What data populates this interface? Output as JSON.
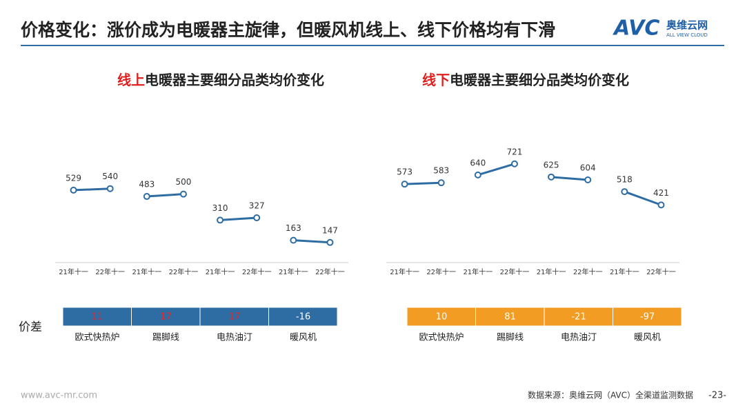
{
  "header": {
    "title": "价格变化：涨价成为电暖器主旋律，但暖风机线上、线下价格均有下滑",
    "logo_mark": "AVC",
    "logo_name": "奥维云网",
    "logo_sub": "ALL VIEW CLOUD"
  },
  "diff_label": "价差",
  "chart_data": [
    {
      "type": "line",
      "title_prefix": "线上",
      "title": "电暖器主要细分品类均价变化",
      "prefix_color": "#e02020",
      "categories": [
        "21年十一",
        "22年十一"
      ],
      "color": "#2e6ca4",
      "box_color": "#2e6ca4",
      "positive_color": "#e8262b",
      "negative_color": "#ffffff",
      "ylim": [
        0,
        1500
      ],
      "groups": [
        {
          "name": "欧式快热炉",
          "values": [
            529,
            540
          ],
          "diff": 11
        },
        {
          "name": "踢脚线",
          "values": [
            483,
            500
          ],
          "diff": 17
        },
        {
          "name": "电热油汀",
          "values": [
            310,
            327
          ],
          "diff": 17
        },
        {
          "name": "暖风机",
          "values": [
            163,
            147
          ],
          "diff": -16
        }
      ]
    },
    {
      "type": "line",
      "title_prefix": "线下",
      "title": "电暖器主要细分品类均价变化",
      "prefix_color": "#e02020",
      "categories": [
        "21年十一",
        "22年十一"
      ],
      "color": "#2e6ca4",
      "box_color": "#f39c23",
      "positive_color": "#ffffff",
      "negative_color": "#ffffff",
      "ylim": [
        0,
        1500
      ],
      "groups": [
        {
          "name": "欧式快热炉",
          "values": [
            573,
            583
          ],
          "diff": 10
        },
        {
          "name": "踢脚线",
          "values": [
            640,
            721
          ],
          "diff": 81
        },
        {
          "name": "电热油汀",
          "values": [
            625,
            604
          ],
          "diff": -21
        },
        {
          "name": "暖风机",
          "values": [
            518,
            421
          ],
          "diff": -97
        }
      ]
    }
  ],
  "footer": {
    "url": "www.avc-mr.com",
    "source": "数据来源：奥维云网（AVC）全渠道监测数据",
    "page": "-23-"
  }
}
